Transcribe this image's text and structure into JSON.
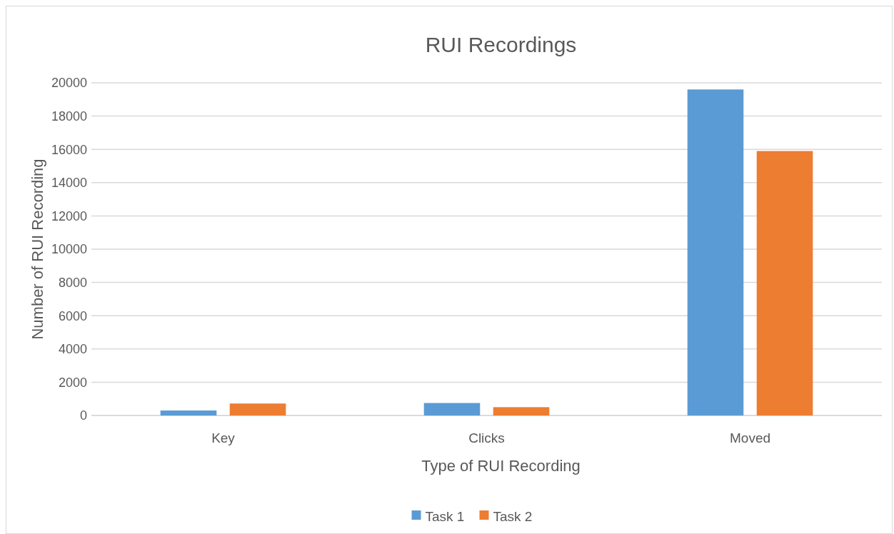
{
  "chart_data": {
    "type": "bar",
    "title": "RUI Recordings",
    "xlabel": "Type of RUI Recording",
    "ylabel": "Number of RUI Recording",
    "categories": [
      "Key",
      "Clicks",
      "Moved"
    ],
    "series": [
      {
        "name": "Task 1",
        "color": "#5b9bd5",
        "values": [
          300,
          750,
          19600
        ]
      },
      {
        "name": "Task 2",
        "color": "#ed7d31",
        "values": [
          720,
          500,
          15900
        ]
      }
    ],
    "ylim": [
      0,
      20000
    ],
    "yticks": [
      0,
      2000,
      4000,
      6000,
      8000,
      10000,
      12000,
      14000,
      16000,
      18000,
      20000
    ],
    "grid": "y",
    "legend": "bottom"
  }
}
